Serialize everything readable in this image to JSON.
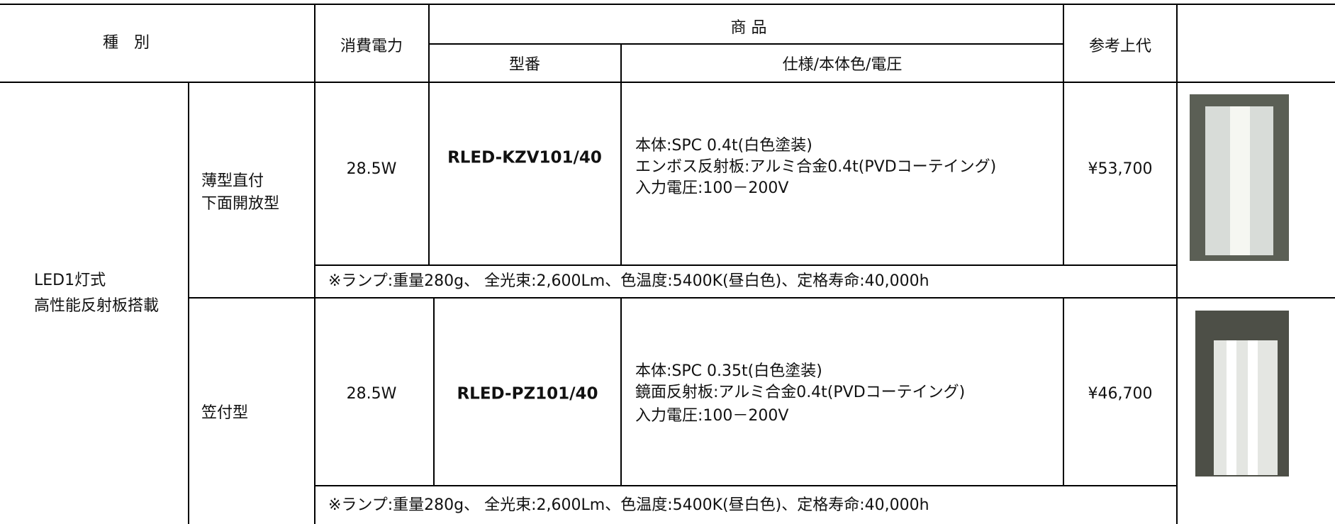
{
  "table": {
    "header": {
      "category": "種　別",
      "power": "消費電力",
      "product": "商 品",
      "model": "型番",
      "spec": "仕様/本体色/電圧",
      "price": "参考上代"
    },
    "group": [
      "LED1灯式",
      "高性能反射板搭載"
    ],
    "rows": [
      {
        "type": [
          "薄型直付",
          "下面開放型"
        ],
        "power": "28.5W",
        "model": "RLED-KZV101/40",
        "spec": [
          "本体:SPC 0.4t(白色塗装)",
          "エンボス反射板:アルミ合金0.4t(PVDコーテイング)",
          "入力電圧:100－200V"
        ],
        "price": "¥53,700",
        "note": "※ランプ:重量280g、 全光束:2,600Lm、色温度:5400K(昼白色)、定格寿命:40,000h"
      },
      {
        "type": [
          "笠付型"
        ],
        "power": "28.5W",
        "model": "RLED-PZ101/40",
        "spec": [
          "本体:SPC 0.35t(白色塗装)",
          "鏡面反射板:アルミ合金0.4t(PVDコーテイング)",
          "入力電圧:100－200V"
        ],
        "price": "¥46,700",
        "note": "※ランプ:重量280g、 全光束:2,600Lm、色温度:5400K(昼白色)、定格寿命:40,000h"
      }
    ]
  }
}
